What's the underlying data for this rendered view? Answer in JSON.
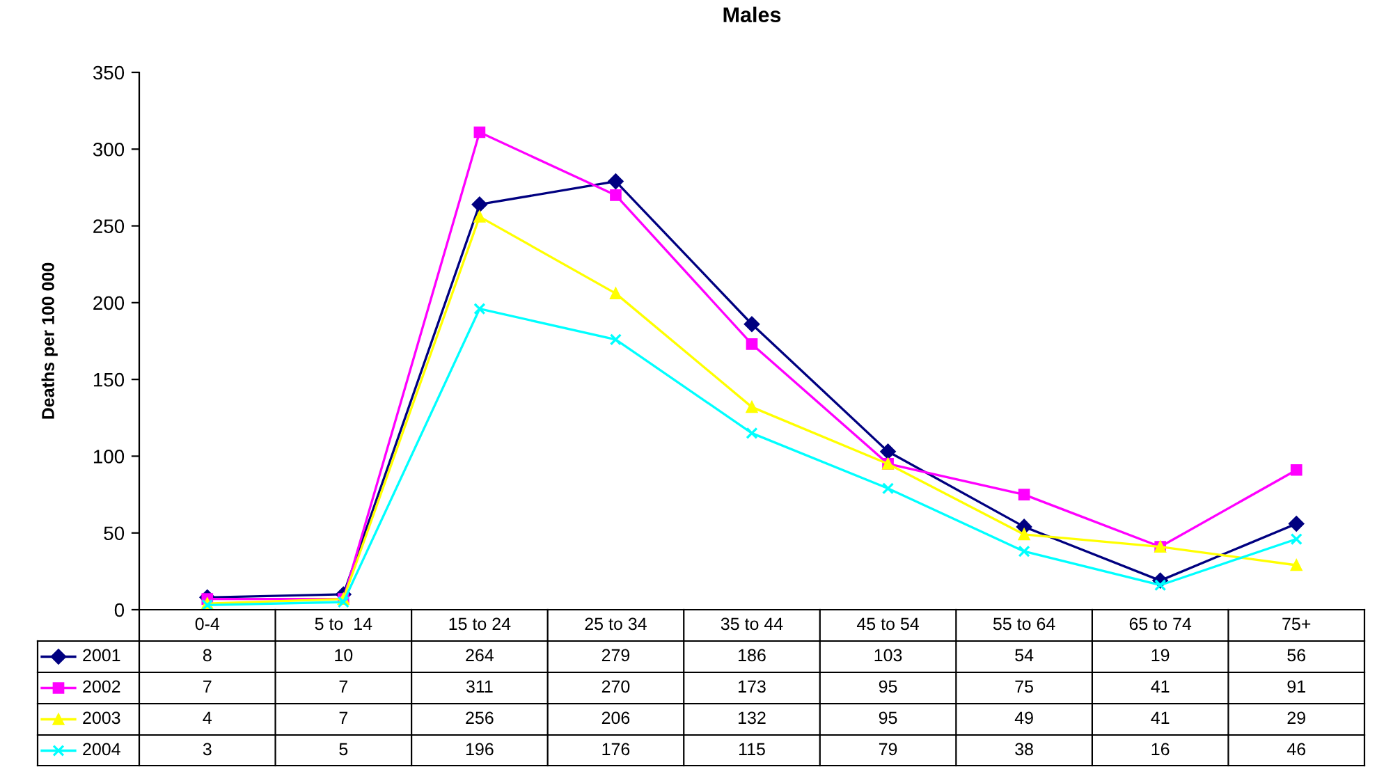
{
  "chart_data": {
    "type": "line",
    "title": "Males",
    "ylabel": "Deaths per 100 000",
    "categories": [
      "0-4",
      "5 to  14",
      "15 to 24",
      "25 to 34",
      "35 to 44",
      "45 to 54",
      "55 to 64",
      "65 to 74",
      "75+"
    ],
    "series": [
      {
        "name": "2001",
        "color": "#000080",
        "marker": "diamond",
        "values": [
          8,
          10,
          264,
          279,
          186,
          103,
          54,
          19,
          56
        ]
      },
      {
        "name": "2002",
        "color": "#ff00ff",
        "marker": "square",
        "values": [
          7,
          7,
          311,
          270,
          173,
          95,
          75,
          41,
          91
        ]
      },
      {
        "name": "2003",
        "color": "#ffff00",
        "marker": "triangle",
        "values": [
          4,
          7,
          256,
          206,
          132,
          95,
          49,
          41,
          29
        ]
      },
      {
        "name": "2004",
        "color": "#00ffff",
        "marker": "cross",
        "values": [
          3,
          5,
          196,
          176,
          115,
          79,
          38,
          16,
          46
        ]
      }
    ],
    "ylim": [
      0,
      350
    ],
    "yticks": [
      0,
      50,
      100,
      150,
      200,
      250,
      300,
      350
    ],
    "grid": false,
    "data_labels": true,
    "legend": "bottom"
  }
}
